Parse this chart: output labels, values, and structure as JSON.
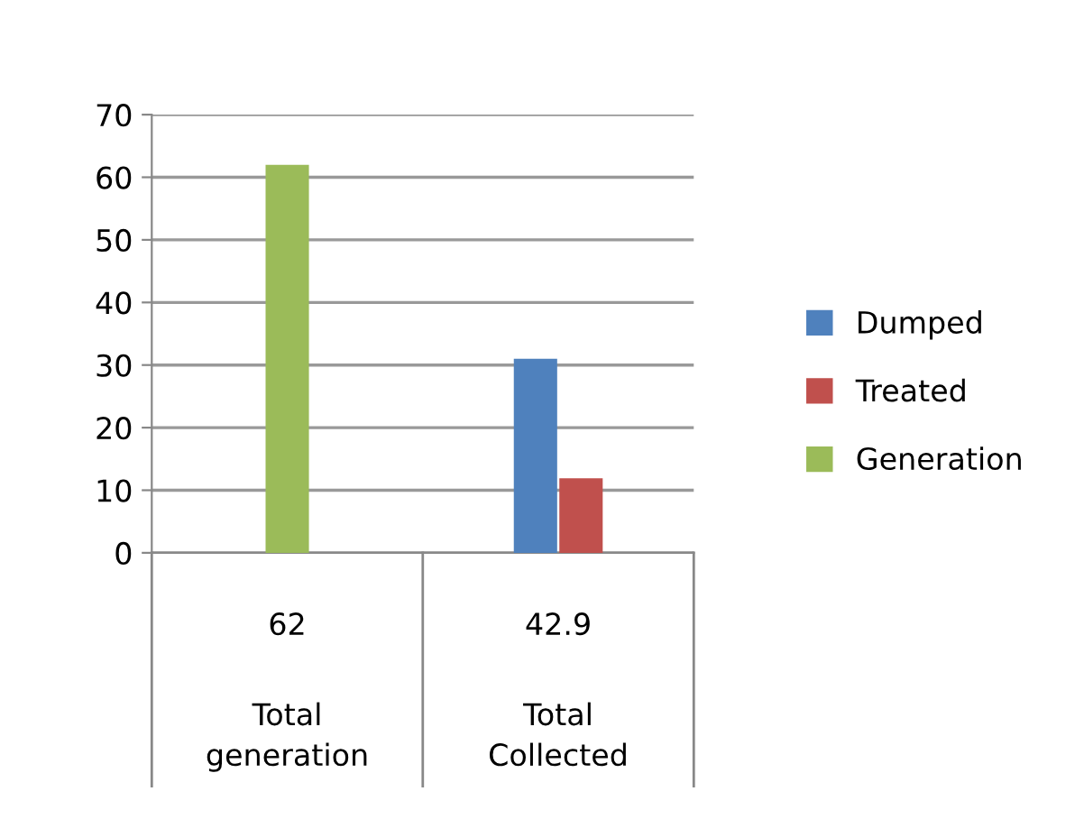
{
  "chart_data": {
    "type": "bar",
    "categories": [
      "Total generation",
      "Total Collected"
    ],
    "series": [
      {
        "name": "Dumped",
        "color": "#4f81bd",
        "values": [
          null,
          31
        ]
      },
      {
        "name": "Treated",
        "color": "#c0504d",
        "values": [
          null,
          11.9
        ]
      },
      {
        "name": "Generation",
        "color": "#9bbb59",
        "values": [
          62,
          null
        ]
      }
    ],
    "totals": [
      "62",
      "42.9"
    ],
    "ylim": [
      0,
      70
    ],
    "yticks": [
      0,
      10,
      20,
      30,
      40,
      50,
      60,
      70
    ],
    "grid": "y",
    "legend": "right"
  }
}
